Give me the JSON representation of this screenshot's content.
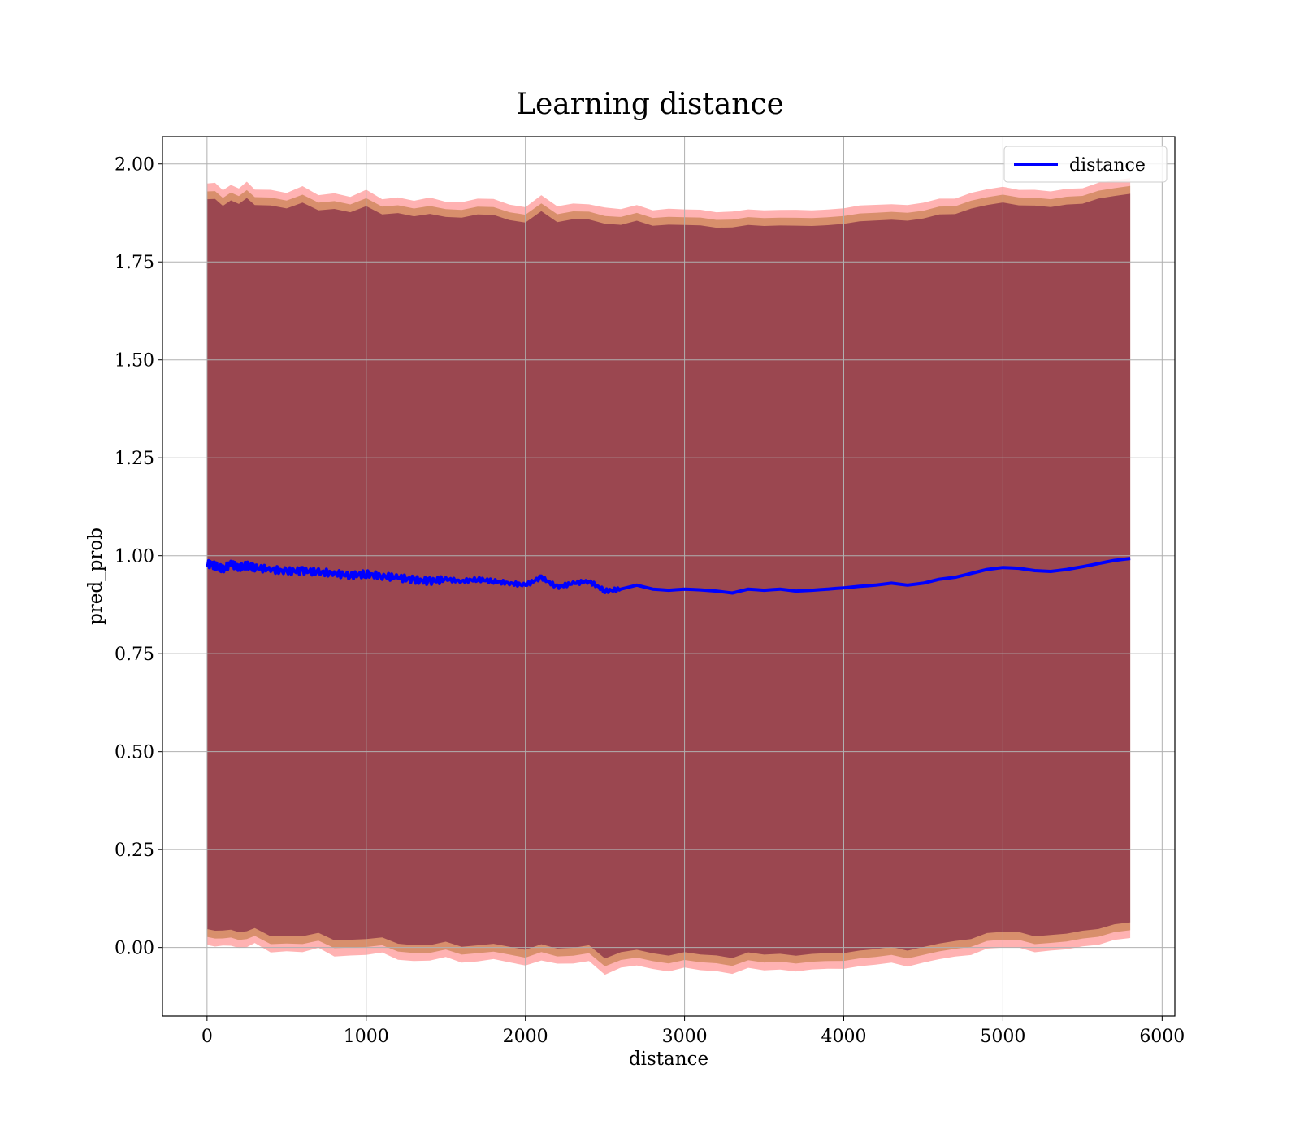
{
  "chart_data": {
    "type": "line",
    "title": "Learning distance",
    "xlabel": "distance",
    "ylabel": "pred_prob",
    "xlim": [
      -280,
      6080
    ],
    "ylim": [
      -0.175,
      2.07
    ],
    "xticks": [
      0,
      1000,
      2000,
      3000,
      4000,
      5000,
      6000
    ],
    "yticks": [
      0.0,
      0.25,
      0.5,
      0.75,
      1.0,
      1.25,
      1.5,
      1.75,
      2.0
    ],
    "xtick_labels": [
      "0",
      "1000",
      "2000",
      "3000",
      "4000",
      "5000",
      "6000"
    ],
    "ytick_labels": [
      "0.00",
      "0.25",
      "0.50",
      "0.75",
      "1.00",
      "1.25",
      "1.50",
      "1.75",
      "2.00"
    ],
    "grid": true,
    "legend": {
      "position": "top-right",
      "entries": [
        "distance"
      ]
    },
    "colors": {
      "line": "#0000ff",
      "band_outer": "#ff0000",
      "band_middle": "#b87333",
      "band_inner": "#6a0d3a"
    },
    "series": [
      {
        "name": "distance",
        "x": [
          0,
          50,
          100,
          150,
          200,
          250,
          300,
          400,
          500,
          600,
          700,
          800,
          900,
          1000,
          1100,
          1200,
          1300,
          1400,
          1500,
          1600,
          1700,
          1800,
          1900,
          2000,
          2100,
          2200,
          2300,
          2400,
          2500,
          2600,
          2700,
          2800,
          2900,
          3000,
          3100,
          3200,
          3300,
          3400,
          3500,
          3600,
          3700,
          3800,
          3900,
          4000,
          4100,
          4200,
          4300,
          4400,
          4500,
          4600,
          4700,
          4800,
          4900,
          5000,
          5100,
          5200,
          5300,
          5400,
          5500,
          5600,
          5700,
          5800
        ],
        "values": [
          0.98,
          0.975,
          0.965,
          0.98,
          0.97,
          0.975,
          0.97,
          0.965,
          0.96,
          0.962,
          0.958,
          0.955,
          0.95,
          0.953,
          0.948,
          0.945,
          0.938,
          0.935,
          0.94,
          0.935,
          0.94,
          0.935,
          0.93,
          0.925,
          0.945,
          0.92,
          0.93,
          0.935,
          0.91,
          0.915,
          0.925,
          0.915,
          0.912,
          0.915,
          0.913,
          0.91,
          0.905,
          0.915,
          0.912,
          0.915,
          0.91,
          0.912,
          0.915,
          0.918,
          0.922,
          0.925,
          0.93,
          0.925,
          0.93,
          0.94,
          0.945,
          0.955,
          0.965,
          0.97,
          0.968,
          0.962,
          0.96,
          0.965,
          0.972,
          0.98,
          0.988,
          0.993
        ]
      }
    ]
  }
}
